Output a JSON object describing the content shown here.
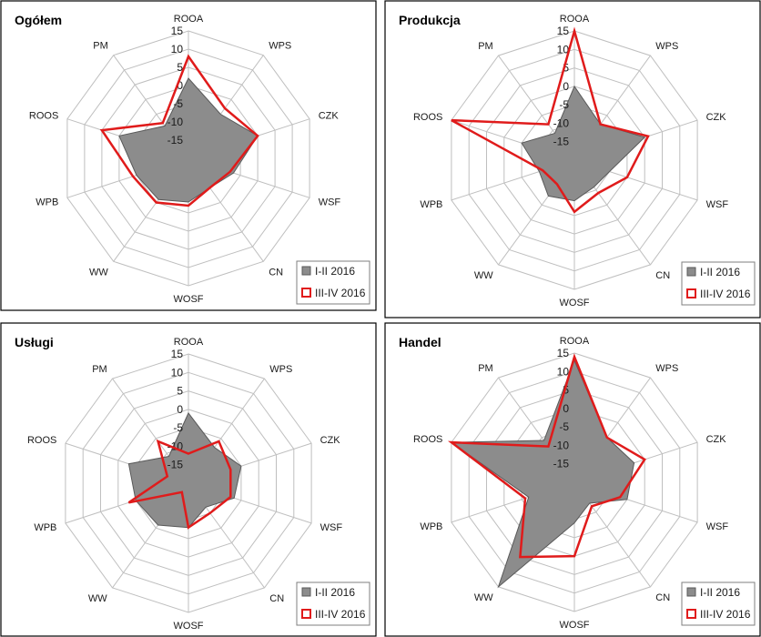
{
  "chart_data": [
    {
      "type": "radar",
      "title": "Ogółem",
      "categories": [
        "ROOA",
        "WPS",
        "CZK",
        "WSF",
        "CN",
        "WOSF",
        "WW",
        "WPB",
        "ROOS",
        "PM"
      ],
      "rticks": [
        "15",
        "10",
        "5",
        "0",
        "-5",
        "-10",
        "-15"
      ],
      "rlim": [
        -20,
        15
      ],
      "legend": "bottom-right",
      "series": [
        {
          "name": "I-II 2016",
          "values": [
            2,
            -5,
            0,
            -7,
            -10,
            -8,
            -6,
            -5,
            0,
            -9
          ]
        },
        {
          "name": "III-IV 2016",
          "values": [
            8,
            -3,
            0,
            -8,
            -10,
            -7,
            -5,
            -4,
            5,
            -8
          ]
        }
      ]
    },
    {
      "type": "radar",
      "title": "Produkcja",
      "categories": [
        "ROOA",
        "WPS",
        "CZK",
        "WSF",
        "CN",
        "WOSF",
        "WW",
        "WPB",
        "ROOS",
        "PM"
      ],
      "rticks": [
        "15",
        "10",
        "5",
        "0",
        "-5",
        "-10",
        "-15"
      ],
      "rlim": [
        -20,
        15
      ],
      "legend": "bottom-right",
      "series": [
        {
          "name": "I-II 2016",
          "values": [
            0,
            -8,
            0,
            -10,
            -11,
            -9,
            -8,
            -10,
            -5,
            -11
          ]
        },
        {
          "name": "III-IV 2016",
          "values": [
            15,
            -8,
            1,
            -5,
            -9,
            -6,
            -12,
            -11,
            15,
            -8
          ]
        }
      ]
    },
    {
      "type": "radar",
      "title": "Usługi",
      "categories": [
        "ROOA",
        "WPS",
        "CZK",
        "WSF",
        "CN",
        "WOSF",
        "WW",
        "WPB",
        "ROOS",
        "PM"
      ],
      "rticks": [
        "15",
        "10",
        "5",
        "0",
        "-5",
        "-10",
        "-15"
      ],
      "rlim": [
        -20,
        15
      ],
      "legend": "bottom-right",
      "series": [
        {
          "name": "I-II 2016",
          "values": [
            -1,
            -8,
            -5,
            -7,
            -12,
            -8,
            -6,
            -5,
            -3,
            -11
          ]
        },
        {
          "name": "III-IV 2016",
          "values": [
            -12,
            -6,
            -8,
            -8,
            -10,
            -8,
            -17,
            -3,
            -14,
            -6
          ]
        }
      ]
    },
    {
      "type": "radar",
      "title": "Handel",
      "categories": [
        "ROOA",
        "WPS",
        "CZK",
        "WSF",
        "CN",
        "WOSF",
        "WW",
        "WPB",
        "ROOS",
        "PM"
      ],
      "rticks": [
        "15",
        "10",
        "5",
        "0",
        "-5",
        "-10",
        "-15"
      ],
      "rlim": [
        -20,
        15
      ],
      "legend": "bottom-right",
      "series": [
        {
          "name": "I-II 2016",
          "values": [
            13,
            -5,
            -3,
            -5,
            -13,
            -9,
            15,
            -7,
            15,
            -6
          ]
        },
        {
          "name": "III-IV 2016",
          "values": [
            14,
            -5,
            0,
            -7,
            -12,
            0,
            5,
            -6,
            15,
            -8
          ]
        }
      ]
    }
  ]
}
